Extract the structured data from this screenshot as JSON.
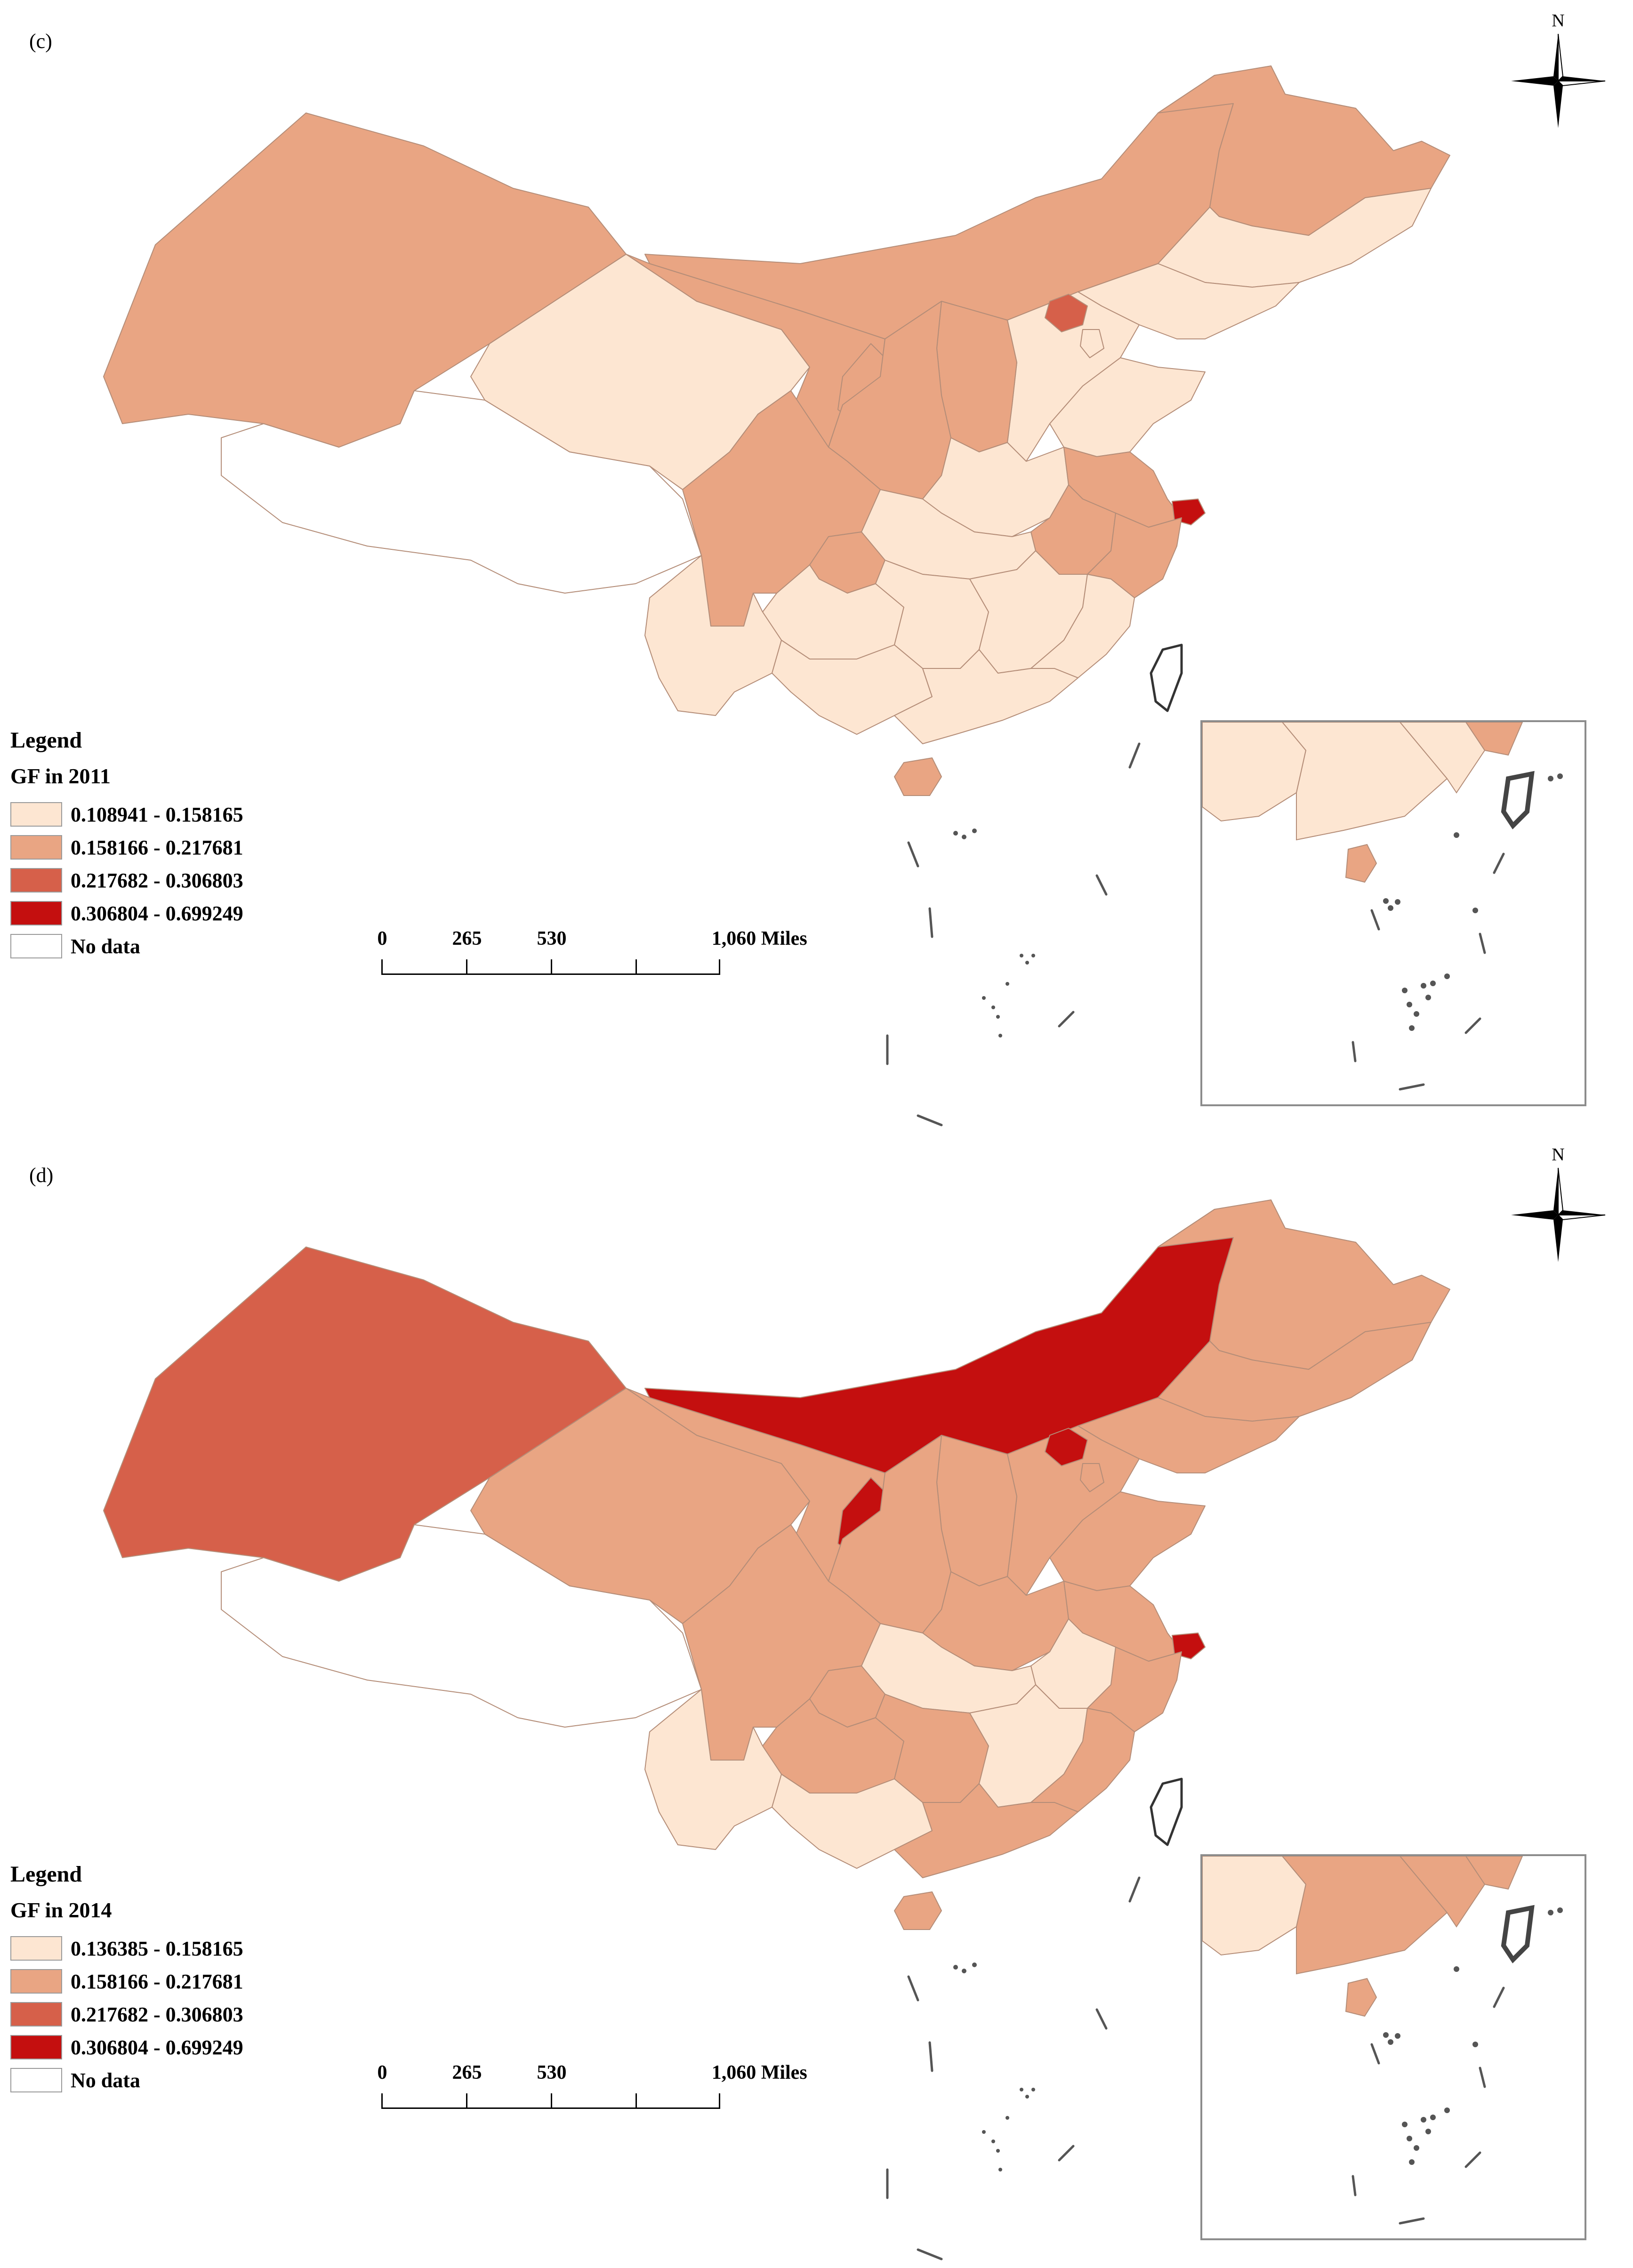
{
  "map_panels": [
    {
      "panel_label": "(c)",
      "north_label": "N",
      "legend": {
        "title": "Legend",
        "subtitle": "GF in 2011",
        "classes": [
          {
            "label": "0.108941 - 0.158165",
            "color": "#fde6d2"
          },
          {
            "label": "0.158166 - 0.217681",
            "color": "#e9a583"
          },
          {
            "label": "0.217682 - 0.306803",
            "color": "#d6604a"
          },
          {
            "label": "0.306804 - 0.699249",
            "color": "#c40f0f"
          },
          {
            "label": "No data",
            "color": "#ffffff"
          }
        ]
      },
      "scale_bar": {
        "ticks": [
          "0",
          "265",
          "530",
          "1,060 Miles"
        ]
      },
      "regions": {
        "xinjiang": 1,
        "tibet": 4,
        "qinghai": 0,
        "gansu": 1,
        "inner_mongolia": 1,
        "heilongjiang": 1,
        "jilin": 0,
        "liaoning": 0,
        "beijing": 2,
        "tianjin": 0,
        "hebei": 0,
        "shanxi": 1,
        "shaanxi": 1,
        "ningxia": 1,
        "henan": 0,
        "shandong": 0,
        "jiangsu": 1,
        "shanghai": 3,
        "zhejiang": 1,
        "anhui": 1,
        "hubei": 0,
        "sichuan": 1,
        "chongqing": 1,
        "guizhou": 0,
        "hunan": 0,
        "jiangxi": 0,
        "fujian": 0,
        "yunnan": 0,
        "guangxi": 0,
        "guangdong": 0,
        "hainan": 1,
        "taiwan": 4
      }
    },
    {
      "panel_label": "(d)",
      "north_label": "N",
      "legend": {
        "title": "Legend",
        "subtitle": "GF in 2014",
        "classes": [
          {
            "label": "0.136385 - 0.158165",
            "color": "#fde6d2"
          },
          {
            "label": "0.158166 - 0.217681",
            "color": "#e9a583"
          },
          {
            "label": "0.217682 - 0.306803",
            "color": "#d6604a"
          },
          {
            "label": "0.306804 - 0.699249",
            "color": "#c40f0f"
          },
          {
            "label": "No data",
            "color": "#ffffff"
          }
        ]
      },
      "scale_bar": {
        "ticks": [
          "0",
          "265",
          "530",
          "1,060 Miles"
        ]
      },
      "regions": {
        "xinjiang": 2,
        "tibet": 4,
        "qinghai": 1,
        "gansu": 1,
        "inner_mongolia": 3,
        "heilongjiang": 1,
        "jilin": 1,
        "liaoning": 1,
        "beijing": 3,
        "tianjin": 1,
        "hebei": 1,
        "shanxi": 1,
        "shaanxi": 1,
        "ningxia": 3,
        "henan": 1,
        "shandong": 1,
        "jiangsu": 1,
        "shanghai": 3,
        "zhejiang": 1,
        "anhui": 0,
        "hubei": 0,
        "sichuan": 1,
        "chongqing": 1,
        "guizhou": 1,
        "hunan": 1,
        "jiangxi": 0,
        "fujian": 1,
        "yunnan": 0,
        "guangxi": 0,
        "guangdong": 1,
        "hainan": 1,
        "taiwan": 4
      }
    }
  ]
}
